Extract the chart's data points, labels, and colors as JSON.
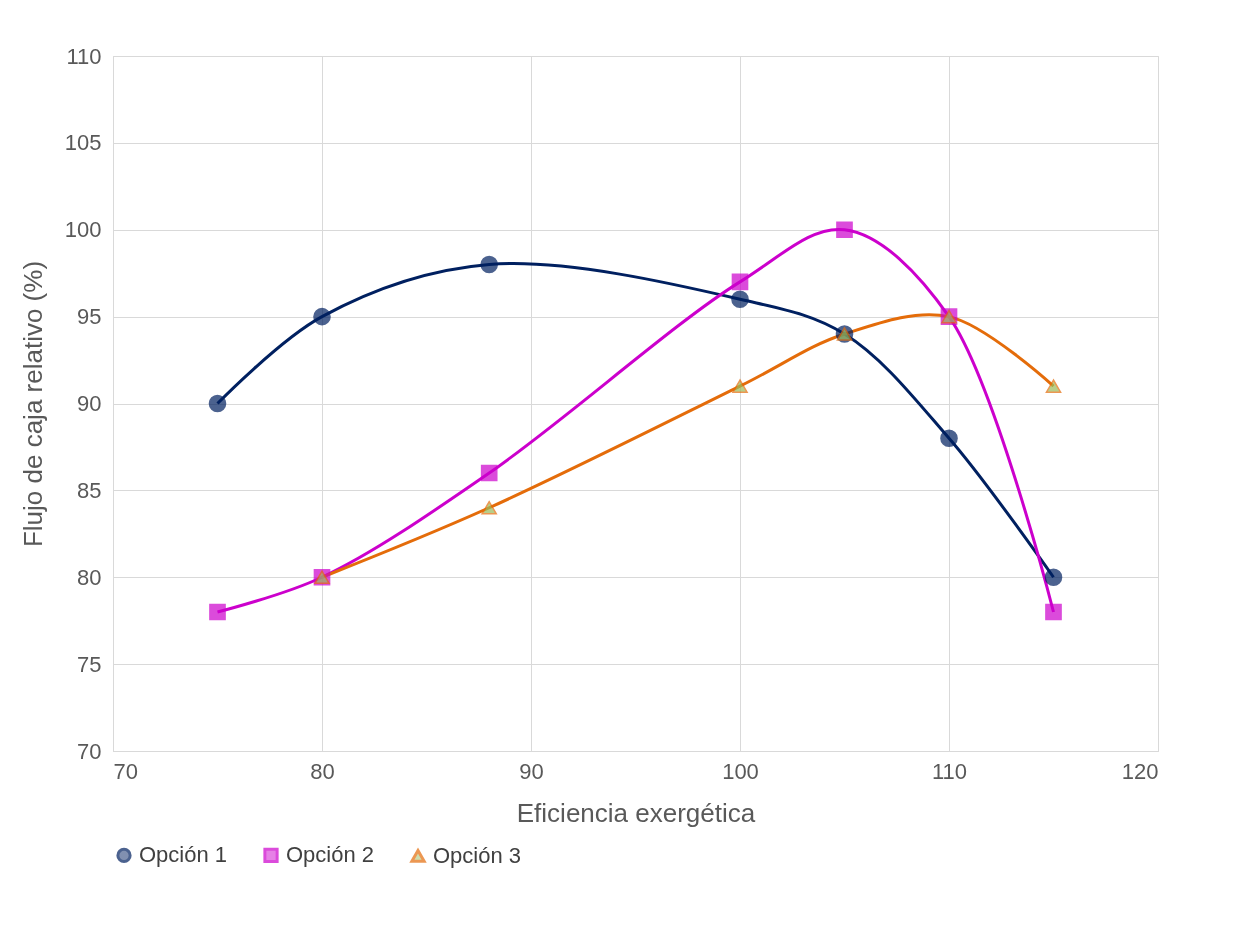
{
  "chart_data": {
    "type": "line",
    "xlabel": "Eficiencia exergética",
    "ylabel": "Flujo de caja relativo (%)",
    "xlim": [
      70,
      120
    ],
    "xticks": [
      70,
      80,
      90,
      100,
      110,
      120
    ],
    "ylim": [
      70,
      110
    ],
    "yticks": [
      70,
      75,
      80,
      85,
      90,
      95,
      100,
      105,
      110
    ],
    "grid": true,
    "legend": "bottom",
    "series": [
      {
        "name": "Opción 1",
        "color": "#002060",
        "marker": "circle",
        "x": [
          75,
          80,
          88,
          100,
          105,
          110,
          115
        ],
        "values": [
          90,
          95,
          98,
          96,
          94,
          88,
          80
        ]
      },
      {
        "name": "Opción 2",
        "color": "#cc00cc",
        "marker": "square",
        "x": [
          75,
          80,
          88,
          100,
          105,
          110,
          115
        ],
        "values": [
          78,
          80,
          86,
          97,
          100,
          95,
          78
        ]
      },
      {
        "name": "Opción 3",
        "color": "#e46c0a",
        "marker": "triangle",
        "x": [
          80,
          88,
          100,
          105,
          110,
          115
        ],
        "values": [
          80,
          84,
          91,
          94,
          95,
          91
        ]
      }
    ]
  }
}
